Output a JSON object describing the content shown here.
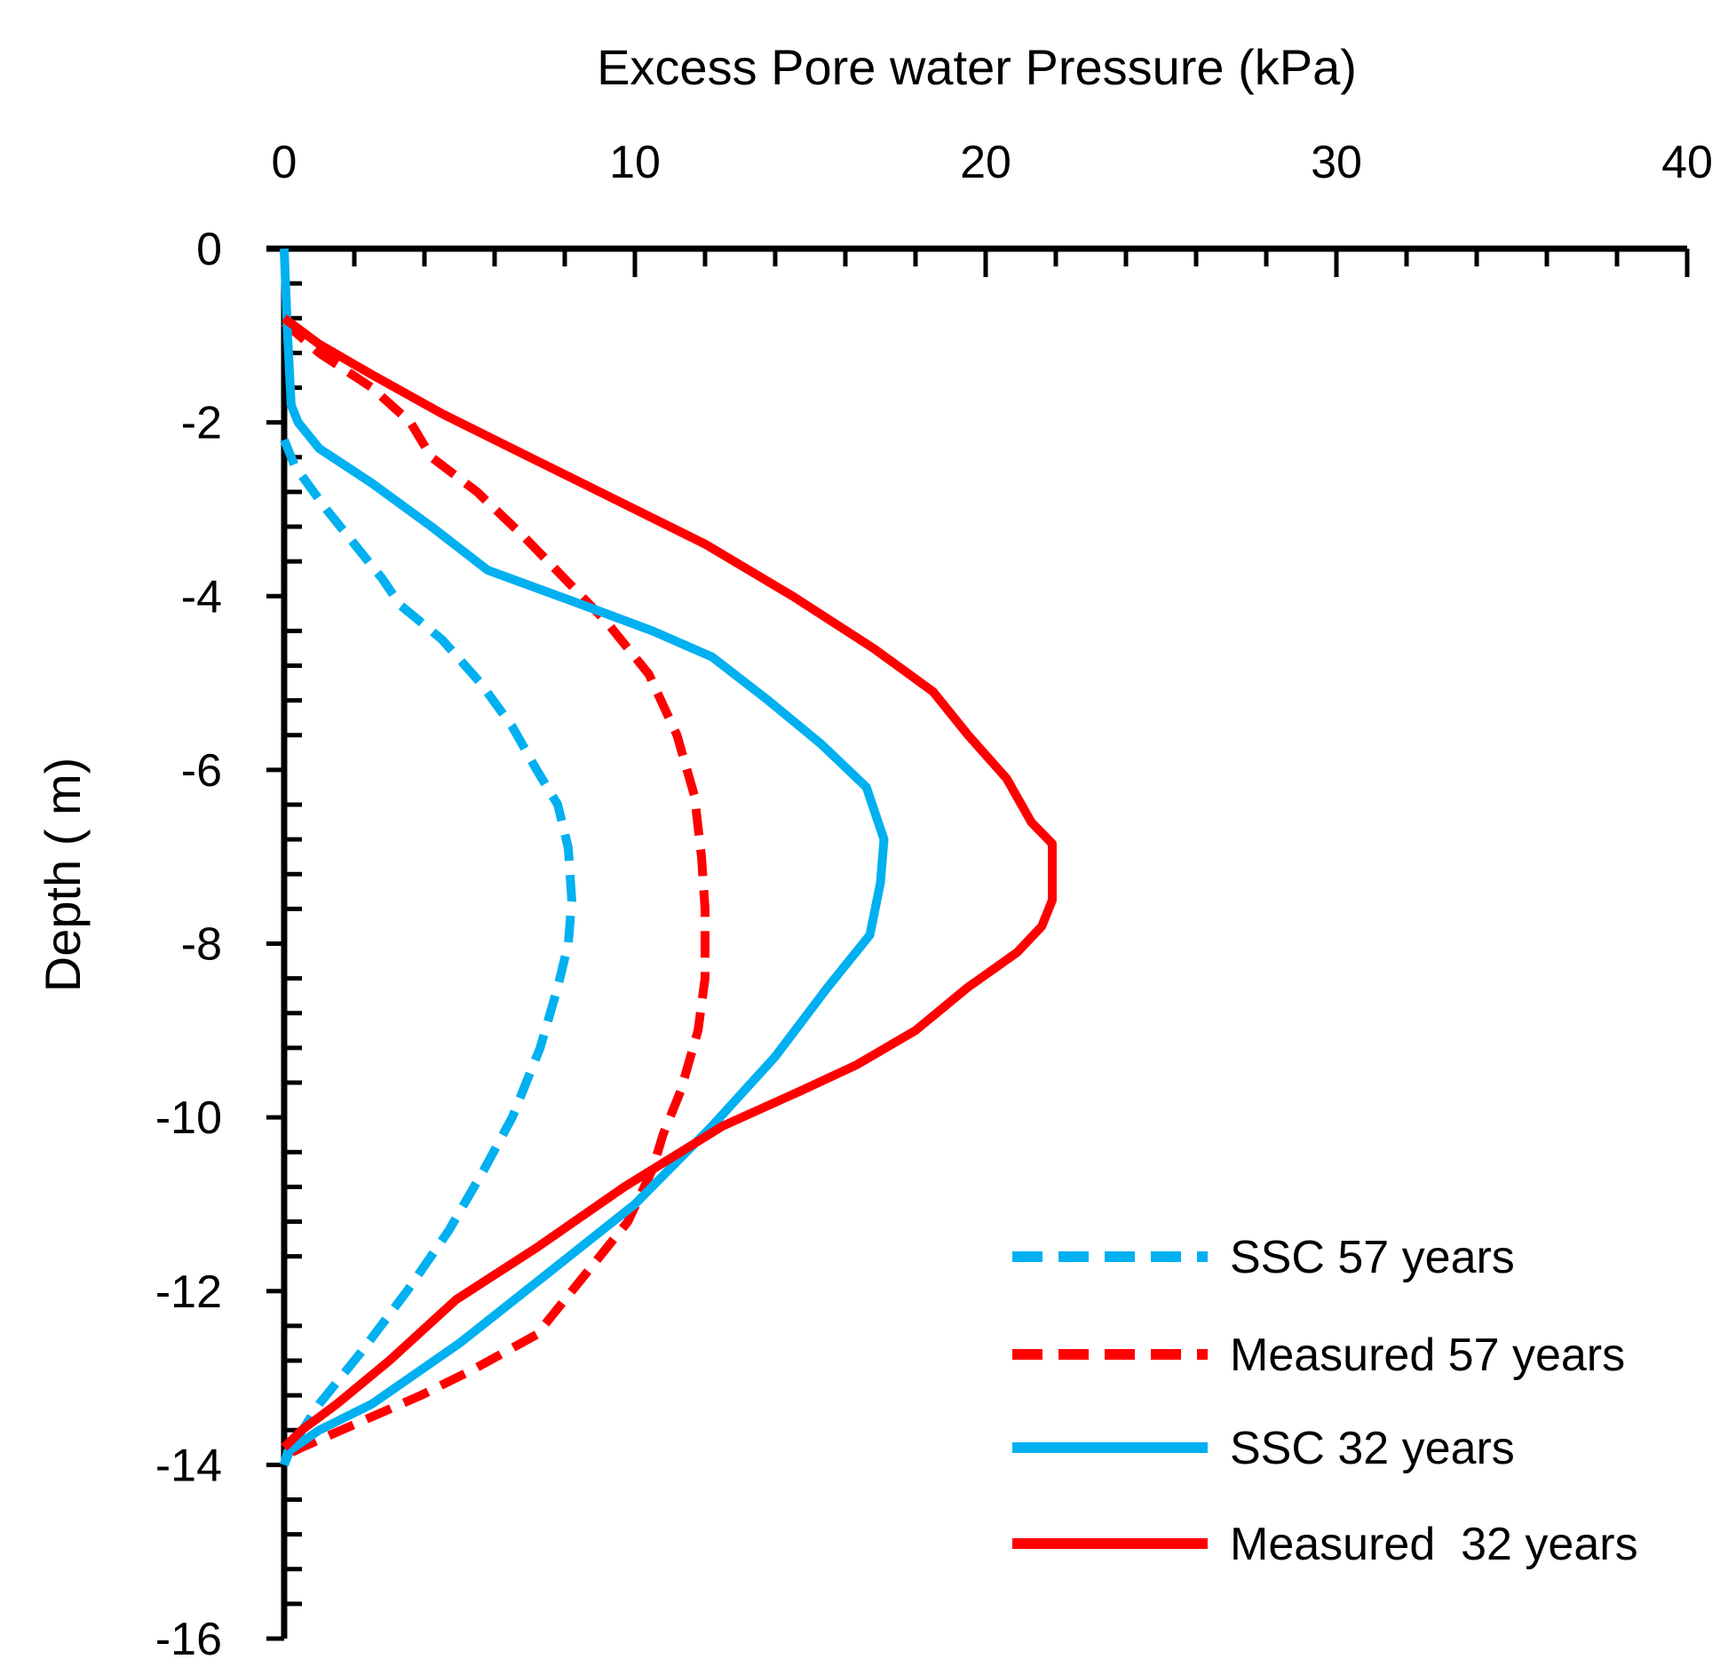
{
  "chart_data": {
    "type": "line",
    "xlabel": "Excess Pore water Pressure (kPa)",
    "ylabel": "Depth ( m)",
    "xlim": [
      0,
      40
    ],
    "ylim": [
      -16,
      0
    ],
    "x_ticks": [
      0,
      10,
      20,
      30,
      40
    ],
    "y_ticks": [
      0,
      -2,
      -4,
      -6,
      -8,
      -10,
      -12,
      -14,
      -16
    ],
    "grid": false,
    "legend_position": "bottom-right",
    "series": [
      {
        "name": "SSC 57 years",
        "color": "#00B0F0",
        "dash": "dashed",
        "points": [
          [
            0,
            -2.2
          ],
          [
            0.3,
            -2.5
          ],
          [
            1.2,
            -3.0
          ],
          [
            2.2,
            -3.5
          ],
          [
            2.8,
            -3.8
          ],
          [
            3.3,
            -4.1
          ],
          [
            4.5,
            -4.5
          ],
          [
            5.6,
            -5.0
          ],
          [
            6.5,
            -5.5
          ],
          [
            7.2,
            -6.0
          ],
          [
            7.8,
            -6.4
          ],
          [
            8.1,
            -6.9
          ],
          [
            8.2,
            -7.5
          ],
          [
            8.1,
            -8.0
          ],
          [
            7.8,
            -8.5
          ],
          [
            7.3,
            -9.2
          ],
          [
            6.5,
            -10.0
          ],
          [
            5.7,
            -10.6
          ],
          [
            4.7,
            -11.3
          ],
          [
            3.5,
            -12.0
          ],
          [
            2.2,
            -12.7
          ],
          [
            1.0,
            -13.3
          ],
          [
            0.2,
            -13.8
          ],
          [
            0,
            -14.0
          ]
        ]
      },
      {
        "name": "Measured 57 years",
        "color": "#FF0000",
        "dash": "dashed",
        "points": [
          [
            0,
            -0.85
          ],
          [
            1.0,
            -1.2
          ],
          [
            2.5,
            -1.6
          ],
          [
            3.6,
            -2.0
          ],
          [
            4.2,
            -2.4
          ],
          [
            5.5,
            -2.8
          ],
          [
            6.8,
            -3.3
          ],
          [
            8.0,
            -3.8
          ],
          [
            9.2,
            -4.3
          ],
          [
            10.4,
            -4.9
          ],
          [
            11.2,
            -5.6
          ],
          [
            11.7,
            -6.3
          ],
          [
            11.9,
            -7.0
          ],
          [
            12.0,
            -7.6
          ],
          [
            12.0,
            -8.4
          ],
          [
            11.8,
            -9.0
          ],
          [
            11.3,
            -9.7
          ],
          [
            10.8,
            -10.2
          ],
          [
            10.5,
            -10.6
          ],
          [
            9.8,
            -11.2
          ],
          [
            8.6,
            -11.8
          ],
          [
            7.2,
            -12.5
          ],
          [
            5.4,
            -12.9
          ],
          [
            3.9,
            -13.2
          ],
          [
            2.2,
            -13.5
          ],
          [
            0.5,
            -13.8
          ],
          [
            0,
            -13.9
          ]
        ]
      },
      {
        "name": "SSC 32 years",
        "color": "#00B0F0",
        "dash": "solid",
        "points": [
          [
            0,
            0
          ],
          [
            0.1,
            -1.0
          ],
          [
            0.2,
            -1.8
          ],
          [
            0.4,
            -2.0
          ],
          [
            1.0,
            -2.3
          ],
          [
            2.5,
            -2.7
          ],
          [
            4.2,
            -3.2
          ],
          [
            5.8,
            -3.7
          ],
          [
            8.5,
            -4.1
          ],
          [
            10.5,
            -4.4
          ],
          [
            12.2,
            -4.7
          ],
          [
            13.8,
            -5.2
          ],
          [
            15.3,
            -5.7
          ],
          [
            16.6,
            -6.2
          ],
          [
            17.1,
            -6.8
          ],
          [
            17.0,
            -7.3
          ],
          [
            16.7,
            -7.9
          ],
          [
            15.5,
            -8.5
          ],
          [
            14.0,
            -9.3
          ],
          [
            12.2,
            -10.1
          ],
          [
            10.0,
            -11.0
          ],
          [
            7.5,
            -11.8
          ],
          [
            5.0,
            -12.6
          ],
          [
            2.5,
            -13.3
          ],
          [
            1.0,
            -13.6
          ],
          [
            0.1,
            -13.85
          ],
          [
            0,
            -14.0
          ]
        ]
      },
      {
        "name": "Measured  32 years",
        "color": "#FF0000",
        "dash": "solid",
        "points": [
          [
            0,
            -0.8
          ],
          [
            1.0,
            -1.1
          ],
          [
            2.5,
            -1.45
          ],
          [
            4.5,
            -1.9
          ],
          [
            7.0,
            -2.4
          ],
          [
            9.5,
            -2.9
          ],
          [
            12.0,
            -3.4
          ],
          [
            14.5,
            -4.0
          ],
          [
            16.8,
            -4.6
          ],
          [
            18.5,
            -5.1
          ],
          [
            19.5,
            -5.6
          ],
          [
            20.6,
            -6.1
          ],
          [
            21.3,
            -6.6
          ],
          [
            21.9,
            -6.85
          ],
          [
            21.9,
            -7.5
          ],
          [
            21.6,
            -7.8
          ],
          [
            20.9,
            -8.1
          ],
          [
            19.5,
            -8.5
          ],
          [
            18.0,
            -9.0
          ],
          [
            16.3,
            -9.4
          ],
          [
            14.7,
            -9.7
          ],
          [
            12.5,
            -10.1
          ],
          [
            9.7,
            -10.8
          ],
          [
            7.2,
            -11.5
          ],
          [
            4.9,
            -12.1
          ],
          [
            3.0,
            -12.8
          ],
          [
            1.5,
            -13.3
          ],
          [
            0.5,
            -13.6
          ],
          [
            0,
            -13.8
          ]
        ]
      }
    ]
  }
}
